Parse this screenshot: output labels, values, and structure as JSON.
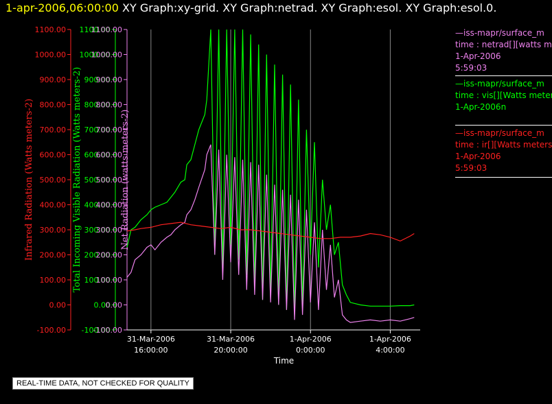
{
  "header": {
    "time": "1-apr-2006,06:00:00",
    "graphs": "XY Graph:xy-grid.  XY Graph:netrad.  XY Graph:esol.  XY Graph:esol.0."
  },
  "notice": "REAL-TIME DATA, NOT CHECKED FOR QUALITY",
  "legend": [
    {
      "name": "netrad",
      "color": "#ee82ee",
      "lines": [
        "—iss-mapr/surface_m",
        "time : netrad[][watts me",
        "1-Apr-2006",
        "5:59:03"
      ]
    },
    {
      "name": "vis",
      "color": "#00ff00",
      "lines": [
        "—iss-mapr/surface_m",
        "time : vis[][Watts meter",
        "1-Apr-2006n"
      ]
    },
    {
      "name": "ir",
      "color": "#ff2020",
      "lines": [
        "—iss-mapr/surface_m",
        "time : ir[][Watts meters",
        "1-Apr-2006",
        "5:59:03"
      ]
    }
  ],
  "chart_data": {
    "type": "line",
    "title": "",
    "xlabel": "Time",
    "x_range_hours": [
      -9.2,
      5.5
    ],
    "x_ticks": [
      {
        "hours": -8,
        "line1": "31-Mar-2006",
        "line2": "16:00:00"
      },
      {
        "hours": -4,
        "line1": "31-Mar-2006",
        "line2": "20:00:00"
      },
      {
        "hours": 0,
        "line1": "1-Apr-2006",
        "line2": "0:00:00"
      },
      {
        "hours": 4,
        "line1": "1-Apr-2006",
        "line2": "4:00:00"
      }
    ],
    "y_ticks": [
      "1100.00",
      "1000.00",
      "900.00",
      "800.00",
      "700.00",
      "600.00",
      "500.00",
      "400.00",
      "300.00",
      "200.00",
      "100.00",
      "0.00",
      "-100.00"
    ],
    "ylim": [
      -100,
      1100
    ],
    "grid": "vertical lines at x ticks",
    "axes": [
      {
        "label": "Infrared Radiation (Watts meters-2)",
        "color": "#ff2020"
      },
      {
        "label": "Total Incoming Visible Radiation (Watts meters-2)",
        "color": "#00ff00"
      },
      {
        "label": "Net Radiation (watts meters-2)",
        "color": "#ee82ee"
      }
    ],
    "series": [
      {
        "name": "vis",
        "color": "#00ff00",
        "x": [
          -9.2,
          -9.0,
          -8.8,
          -8.5,
          -8.2,
          -8.0,
          -7.8,
          -7.5,
          -7.2,
          -7.0,
          -6.8,
          -6.5,
          -6.3,
          -6.2,
          -6.0,
          -5.8,
          -5.6,
          -5.3,
          -5.2,
          -5.0,
          -4.8,
          -4.6,
          -4.4,
          -4.2,
          -4.0,
          -3.8,
          -3.6,
          -3.4,
          -3.2,
          -3.0,
          -2.8,
          -2.6,
          -2.4,
          -2.2,
          -2.0,
          -1.8,
          -1.6,
          -1.4,
          -1.2,
          -1.0,
          -0.8,
          -0.6,
          -0.4,
          -0.2,
          0.0,
          0.2,
          0.4,
          0.6,
          0.8,
          1.0,
          1.2,
          1.4,
          1.6,
          1.8,
          2.0,
          2.5,
          3.0,
          3.5,
          4.0,
          4.5,
          5.0,
          5.2
        ],
        "y": [
          230,
          300,
          310,
          340,
          360,
          380,
          390,
          400,
          410,
          430,
          450,
          490,
          500,
          560,
          580,
          640,
          700,
          760,
          820,
          1100,
          200,
          1100,
          150,
          1100,
          240,
          1100,
          180,
          1100,
          120,
          1080,
          60,
          1040,
          20,
          1000,
          30,
          960,
          0,
          920,
          -20,
          880,
          -40,
          820,
          -10,
          700,
          200,
          650,
          150,
          500,
          300,
          400,
          200,
          250,
          80,
          40,
          10,
          0,
          -5,
          -5,
          -5,
          -3,
          -3,
          0
        ]
      },
      {
        "name": "netrad",
        "color": "#ee82ee",
        "x": [
          -9.2,
          -9.0,
          -8.8,
          -8.5,
          -8.2,
          -8.0,
          -7.8,
          -7.5,
          -7.2,
          -7.0,
          -6.8,
          -6.5,
          -6.3,
          -6.2,
          -6.0,
          -5.8,
          -5.6,
          -5.3,
          -5.2,
          -5.0,
          -4.8,
          -4.6,
          -4.4,
          -4.2,
          -4.0,
          -3.8,
          -3.6,
          -3.4,
          -3.2,
          -3.0,
          -2.8,
          -2.6,
          -2.4,
          -2.2,
          -2.0,
          -1.8,
          -1.6,
          -1.4,
          -1.2,
          -1.0,
          -0.8,
          -0.6,
          -0.4,
          -0.2,
          0.0,
          0.2,
          0.4,
          0.6,
          0.8,
          1.0,
          1.2,
          1.4,
          1.6,
          1.8,
          2.0,
          2.5,
          3.0,
          3.5,
          4.0,
          4.5,
          5.0,
          5.2
        ],
        "y": [
          110,
          130,
          180,
          200,
          230,
          240,
          220,
          250,
          270,
          280,
          300,
          320,
          330,
          360,
          380,
          420,
          470,
          540,
          600,
          640,
          200,
          620,
          100,
          600,
          170,
          590,
          120,
          580,
          60,
          570,
          40,
          560,
          20,
          520,
          10,
          480,
          0,
          460,
          -20,
          440,
          -60,
          420,
          -40,
          380,
          10,
          330,
          -20,
          300,
          60,
          240,
          30,
          100,
          -40,
          -60,
          -70,
          -65,
          -60,
          -65,
          -60,
          -65,
          -55,
          -50
        ]
      },
      {
        "name": "ir",
        "color": "#ff2020",
        "x": [
          -9.2,
          -8.8,
          -8.5,
          -8.0,
          -7.5,
          -7.0,
          -6.5,
          -6.0,
          -5.5,
          -5.0,
          -4.5,
          -4.0,
          -3.5,
          -3.0,
          -2.5,
          -2.0,
          -1.5,
          -1.0,
          -0.5,
          0.0,
          0.5,
          1.0,
          1.5,
          2.0,
          2.5,
          3.0,
          3.5,
          4.0,
          4.5,
          5.0,
          5.2
        ],
        "y": [
          295,
          300,
          305,
          310,
          320,
          325,
          330,
          320,
          315,
          310,
          305,
          310,
          300,
          300,
          295,
          290,
          285,
          280,
          275,
          270,
          265,
          265,
          270,
          270,
          275,
          285,
          280,
          270,
          255,
          275,
          285
        ]
      }
    ]
  }
}
